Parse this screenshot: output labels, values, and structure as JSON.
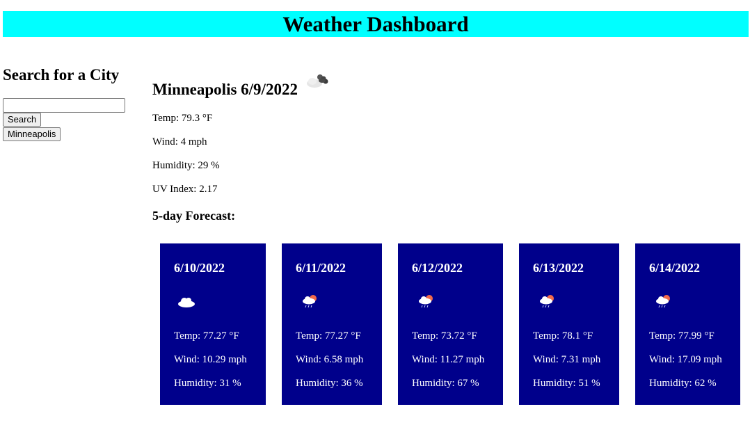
{
  "header": {
    "title": "Weather Dashboard"
  },
  "sidebar": {
    "heading": "Search for a City",
    "search_value": "",
    "search_label": "Search",
    "history": [
      "Minneapolis"
    ]
  },
  "current": {
    "title": "Minneapolis 6/9/2022",
    "icon": "few-clouds-icon",
    "temp": "Temp: 79.3 °F",
    "wind": "Wind: 4 mph",
    "humidity": "Humidity: 29 %",
    "uv": "UV Index: 2.17"
  },
  "forecast": {
    "heading": "5-day Forecast:",
    "days": [
      {
        "date": "6/10/2022",
        "icon": "cloud-icon",
        "temp": "Temp: 77.27 °F",
        "wind": "Wind: 10.29 mph",
        "humidity": "Humidity: 31 %"
      },
      {
        "date": "6/11/2022",
        "icon": "rain-icon",
        "temp": "Temp: 77.27 °F",
        "wind": "Wind: 6.58 mph",
        "humidity": "Humidity: 36 %"
      },
      {
        "date": "6/12/2022",
        "icon": "rain-icon",
        "temp": "Temp: 73.72 °F",
        "wind": "Wind: 11.27 mph",
        "humidity": "Humidity: 67 %"
      },
      {
        "date": "6/13/2022",
        "icon": "rain-icon",
        "temp": "Temp: 78.1 °F",
        "wind": "Wind: 7.31 mph",
        "humidity": "Humidity: 51 %"
      },
      {
        "date": "6/14/2022",
        "icon": "rain-icon",
        "temp": "Temp: 77.99 °F",
        "wind": "Wind: 17.09 mph",
        "humidity": "Humidity: 62 %"
      }
    ]
  },
  "colors": {
    "header_bg": "#00ffff",
    "card_bg": "#00008b"
  }
}
